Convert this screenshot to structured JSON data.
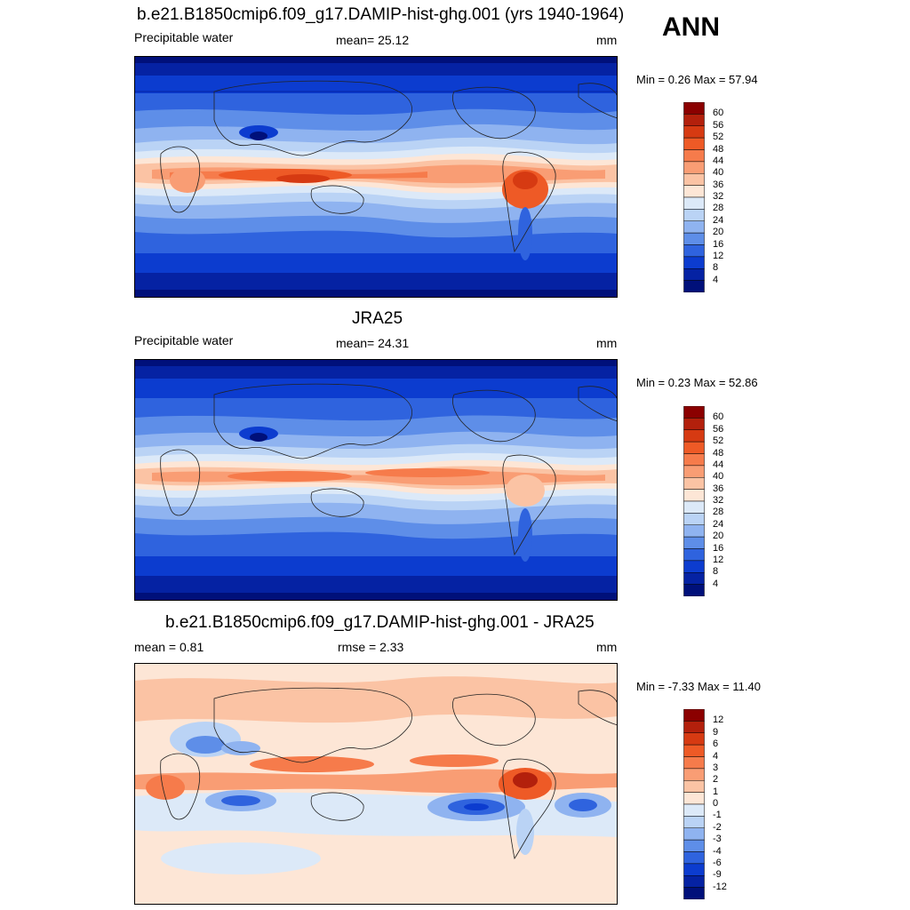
{
  "season": "ANN",
  "panels": [
    {
      "title": "b.e21.B1850cmip6.f09_g17.DAMIP-hist-ghg.001 (yrs 1940-1964)",
      "left_label": "Precipitable water",
      "center_label": "mean=  25.12",
      "units": "mm",
      "minmax": "Min =   0.26 Max =  57.94",
      "colorbar": {
        "labels": [
          "60",
          "56",
          "52",
          "48",
          "44",
          "40",
          "36",
          "32",
          "28",
          "24",
          "20",
          "16",
          "12",
          "8",
          "4"
        ],
        "colors": [
          "#8b0000",
          "#b3200c",
          "#d63a12",
          "#ee5a26",
          "#f67b4b",
          "#f99d74",
          "#fbc3a4",
          "#fde6d6",
          "#dce9f8",
          "#bad3f5",
          "#8fb3f0",
          "#5e8ee8",
          "#2f63de",
          "#0c3ccf",
          "#0522a3",
          "#00107a"
        ]
      }
    },
    {
      "title": "JRA25",
      "left_label": "Precipitable water",
      "center_label": "mean=  24.31",
      "units": "mm",
      "minmax": "Min =   0.23 Max =  52.86",
      "colorbar": {
        "labels": [
          "60",
          "56",
          "52",
          "48",
          "44",
          "40",
          "36",
          "32",
          "28",
          "24",
          "20",
          "16",
          "12",
          "8",
          "4"
        ],
        "colors": [
          "#8b0000",
          "#b3200c",
          "#d63a12",
          "#ee5a26",
          "#f67b4b",
          "#f99d74",
          "#fbc3a4",
          "#fde6d6",
          "#dce9f8",
          "#bad3f5",
          "#8fb3f0",
          "#5e8ee8",
          "#2f63de",
          "#0c3ccf",
          "#0522a3",
          "#00107a"
        ]
      }
    },
    {
      "title": "b.e21.B1850cmip6.f09_g17.DAMIP-hist-ghg.001 - JRA25",
      "left_label": "mean =   0.81",
      "center_label": "rmse =   2.33",
      "units": "mm",
      "minmax": "Min =  -7.33 Max =  11.40",
      "colorbar": {
        "labels": [
          "12",
          "9",
          "6",
          "4",
          "3",
          "2",
          "1",
          "0",
          "-1",
          "-2",
          "-3",
          "-4",
          "-6",
          "-9",
          "-12"
        ],
        "colors": [
          "#8b0000",
          "#b3200c",
          "#d63a12",
          "#ee5a26",
          "#f67b4b",
          "#f99d74",
          "#fbc3a4",
          "#fde6d6",
          "#dce9f8",
          "#bad3f5",
          "#8fb3f0",
          "#5e8ee8",
          "#2f63de",
          "#0c3ccf",
          "#0522a3",
          "#00107a"
        ]
      }
    }
  ],
  "chart_data": [
    {
      "type": "heatmap",
      "title": "b.e21.B1850cmip6.f09_g17.DAMIP-hist-ghg.001 (yrs 1940-1964)",
      "variable": "Precipitable water",
      "units": "mm",
      "mean": 25.12,
      "min": 0.26,
      "max": 57.94,
      "levels": [
        4,
        8,
        12,
        16,
        20,
        24,
        28,
        32,
        36,
        40,
        44,
        48,
        52,
        56,
        60
      ]
    },
    {
      "type": "heatmap",
      "title": "JRA25",
      "variable": "Precipitable water",
      "units": "mm",
      "mean": 24.31,
      "min": 0.23,
      "max": 52.86,
      "levels": [
        4,
        8,
        12,
        16,
        20,
        24,
        28,
        32,
        36,
        40,
        44,
        48,
        52,
        56,
        60
      ]
    },
    {
      "type": "heatmap",
      "title": "b.e21.B1850cmip6.f09_g17.DAMIP-hist-ghg.001 - JRA25",
      "units": "mm",
      "mean": 0.81,
      "rmse": 2.33,
      "min": -7.33,
      "max": 11.4,
      "levels": [
        -12,
        -9,
        -6,
        -4,
        -3,
        -2,
        -1,
        0,
        1,
        2,
        3,
        4,
        6,
        9,
        12
      ]
    }
  ]
}
